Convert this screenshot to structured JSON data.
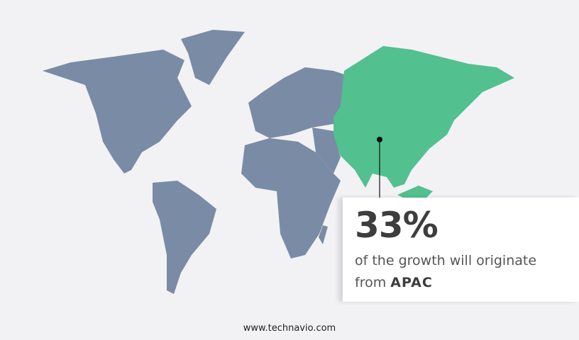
{
  "callout": {
    "percentage": "33%",
    "text": "of the growth will originate",
    "from_label": "from",
    "region": "APAC"
  },
  "footer": {
    "website": "www.technavio.com"
  },
  "colors": {
    "background": "#f2f2f4",
    "map_default": "#7a8ba6",
    "map_highlight": "#52c08f",
    "text": "#3d3d3d"
  },
  "map": {
    "highlighted_region": "APAC"
  }
}
